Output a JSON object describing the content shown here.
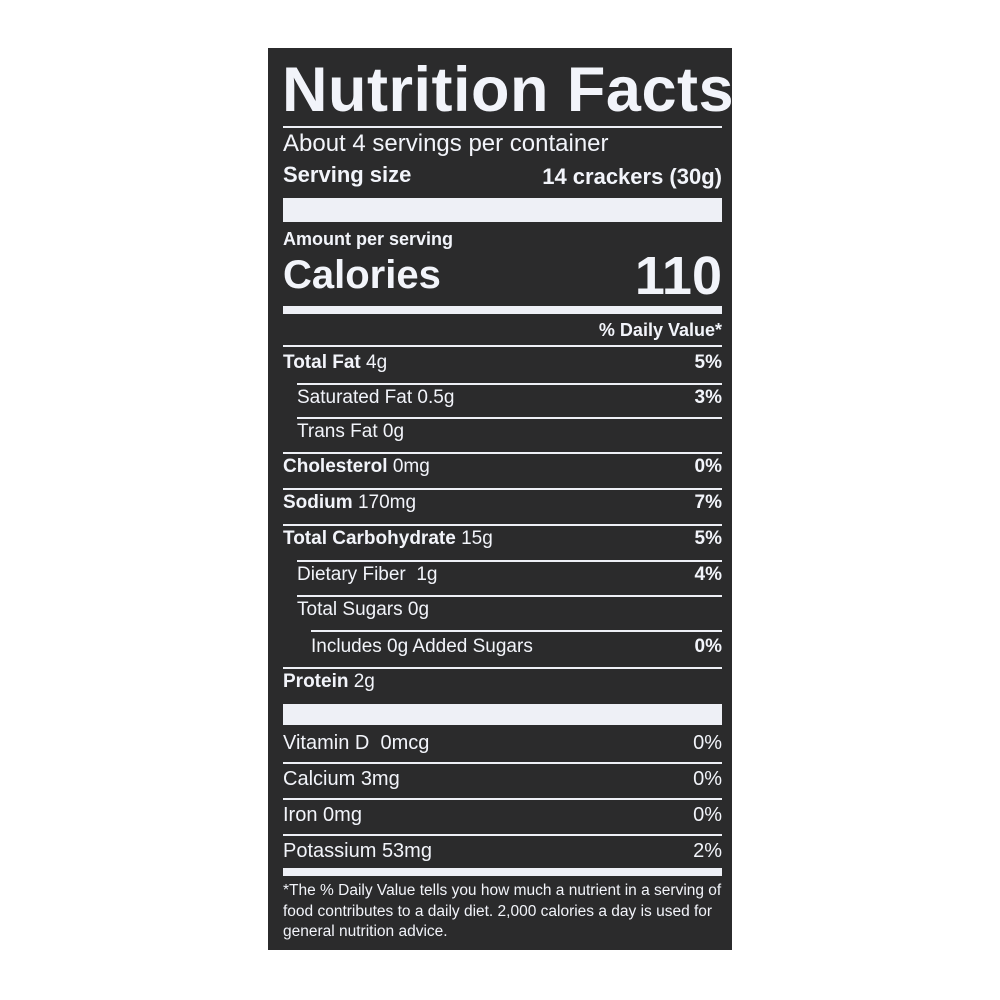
{
  "title": "Nutrition Facts",
  "servings_per_container": "About 4 servings per container",
  "serving_size_label": "Serving size",
  "serving_size_value": "14 crackers (30g)",
  "amount_per_serving": "Amount per serving",
  "calories_label": "Calories",
  "calories_value": "110",
  "daily_value_header": "% Daily Value*",
  "nutrients": [
    {
      "name": "Total Fat",
      "amount": "4g",
      "dv": "5%"
    },
    {
      "name": "Saturated Fat",
      "amount": "0.5g",
      "dv": "3%"
    },
    {
      "name": "Trans Fat",
      "amount": "0g",
      "dv": ""
    },
    {
      "name": "Cholesterol",
      "amount": "0mg",
      "dv": "0%"
    },
    {
      "name": "Sodium",
      "amount": "170mg",
      "dv": "7%"
    },
    {
      "name": "Total Carbohydrate",
      "amount": "15g",
      "dv": "5%"
    },
    {
      "name": "Dietary Fiber",
      "amount": "1g",
      "dv": "4%"
    },
    {
      "name": "Total Sugars",
      "amount": "0g",
      "dv": ""
    },
    {
      "name": "Includes 0g Added Sugars",
      "amount": "",
      "dv": "0%"
    },
    {
      "name": "Protein",
      "amount": "2g",
      "dv": ""
    }
  ],
  "vitamins": [
    {
      "name": "Vitamin D",
      "amount": "0mcg",
      "dv": "0%"
    },
    {
      "name": "Calcium",
      "amount": "3mg",
      "dv": "0%"
    },
    {
      "name": "Iron",
      "amount": "0mg",
      "dv": "0%"
    },
    {
      "name": "Potassium",
      "amount": "53mg",
      "dv": "2%"
    }
  ],
  "footnote": "*The % Daily Value tells you how much a nutrient in a serving of food contributes to a daily diet. 2,000 calories a day is used for general nutrition advice.",
  "colors": {
    "background": "#2b2b2c",
    "text": "#f2f4fa"
  }
}
